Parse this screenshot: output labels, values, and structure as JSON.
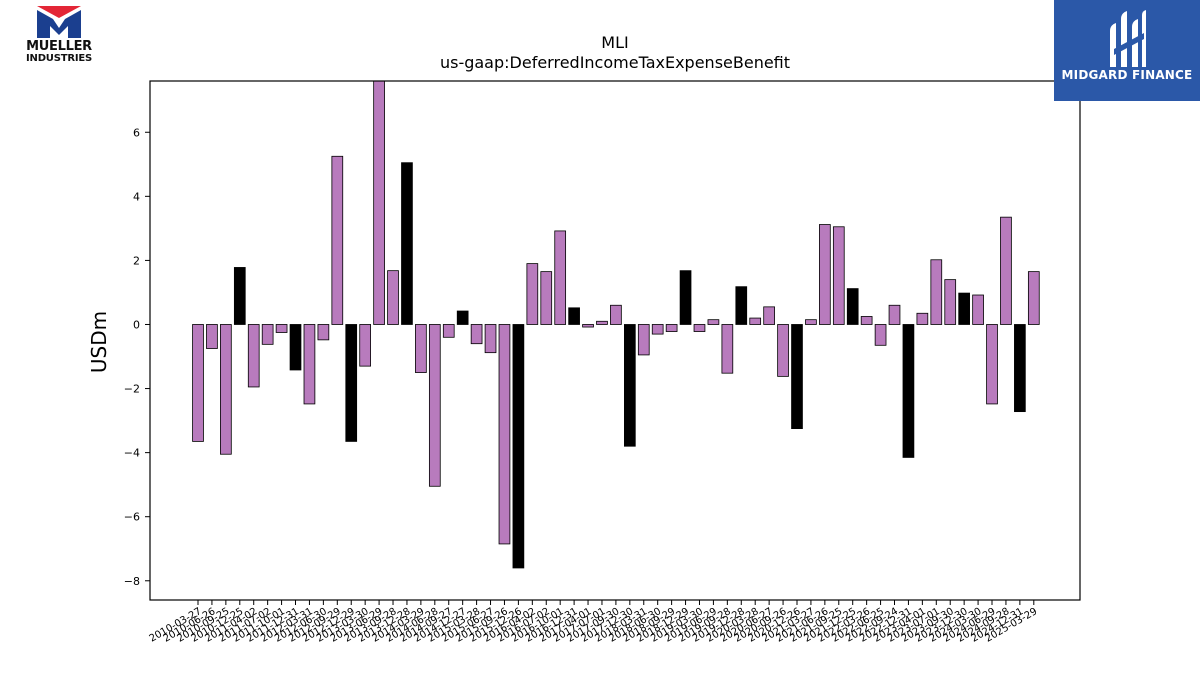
{
  "header": {
    "title": "MLI",
    "subtitle": "us-gaap:DeferredIncomeTaxExpenseBenefit"
  },
  "logos": {
    "left_line1": "MUELLER",
    "left_line2": "INDUSTRIES",
    "right_text": "MIDGARD FINANCE"
  },
  "colors": {
    "bar_primary": "#b87bbd",
    "bar_secondary": "#000000",
    "logo_red": "#e32636",
    "logo_blue": "#1b3f8f",
    "panel_blue": "#2b58a8"
  },
  "chart_data": {
    "type": "bar",
    "title": "",
    "xlabel": "",
    "ylabel": "USDm",
    "ylim": [
      -8.6,
      7.6
    ],
    "yticks": [
      -8,
      -6,
      -4,
      -2,
      0,
      2,
      4,
      6
    ],
    "yticklabels": [
      "−8",
      "−6",
      "−4",
      "−2",
      "0",
      "2",
      "4",
      "6"
    ],
    "grid": false,
    "categories": [
      "2010-03-27",
      "2010-06-26",
      "2010-09-25",
      "2010-12-25",
      "2011-04-02",
      "2011-07-02",
      "2011-10-01",
      "2011-12-31",
      "2012-03-31",
      "2012-06-30",
      "2012-09-29",
      "2012-12-29",
      "2013-03-30",
      "2013-06-29",
      "2013-09-28",
      "2013-12-28",
      "2014-03-29",
      "2014-06-28",
      "2014-09-27",
      "2014-12-27",
      "2015-03-28",
      "2015-06-27",
      "2015-09-26",
      "2015-12-26",
      "2016-04-02",
      "2016-07-02",
      "2016-10-01",
      "2016-12-31",
      "2017-04-01",
      "2017-07-01",
      "2017-09-30",
      "2017-12-30",
      "2018-03-31",
      "2018-06-30",
      "2018-09-29",
      "2018-12-29",
      "2019-03-30",
      "2019-06-29",
      "2019-09-28",
      "2019-12-28",
      "2020-03-28",
      "2020-06-27",
      "2020-09-26",
      "2020-12-26",
      "2021-03-27",
      "2021-06-26",
      "2021-09-25",
      "2021-12-25",
      "2022-03-26",
      "2022-06-25",
      "2022-09-24",
      "2022-12-31",
      "2023-04-01",
      "2023-07-01",
      "2023-09-30",
      "2023-12-30",
      "2024-03-30",
      "2024-06-29",
      "2024-09-28",
      "2024-12-31",
      "2025-03-29"
    ],
    "values": [
      -3.65,
      -0.75,
      -4.05,
      1.78,
      -1.95,
      -0.62,
      -0.25,
      -1.42,
      -2.48,
      -0.48,
      5.25,
      -3.65,
      -1.3,
      7.65,
      1.68,
      5.05,
      -1.5,
      -5.05,
      -0.4,
      0.42,
      -0.6,
      -0.88,
      -6.85,
      -7.6,
      1.9,
      1.65,
      2.92,
      0.52,
      -0.08,
      0.1,
      0.6,
      -3.8,
      -0.95,
      -0.3,
      -0.22,
      1.68,
      -0.22,
      0.15,
      -1.52,
      1.18,
      0.2,
      0.55,
      -1.62,
      -3.25,
      0.15,
      3.12,
      3.05,
      1.12,
      0.25,
      -0.65,
      0.6,
      -4.15,
      0.35,
      2.02,
      1.4,
      0.98,
      0.92,
      -2.48,
      3.35,
      -2.72,
      1.65
    ],
    "highlight": [
      false,
      false,
      false,
      true,
      false,
      false,
      false,
      true,
      false,
      false,
      false,
      true,
      false,
      false,
      false,
      true,
      false,
      false,
      false,
      true,
      false,
      false,
      false,
      true,
      false,
      false,
      false,
      true,
      false,
      false,
      false,
      true,
      false,
      false,
      false,
      true,
      false,
      false,
      false,
      true,
      false,
      false,
      false,
      true,
      false,
      false,
      false,
      true,
      false,
      false,
      false,
      true,
      false,
      false,
      false,
      true,
      false,
      false,
      false,
      true,
      false
    ]
  }
}
